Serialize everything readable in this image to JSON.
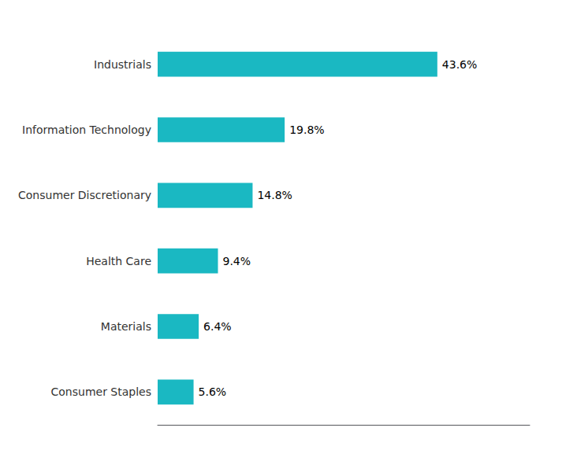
{
  "chart_data": {
    "type": "bar",
    "orientation": "horizontal",
    "categories": [
      "Consumer Staples",
      "Materials",
      "Health Care",
      "Consumer Discretionary",
      "Information Technology",
      "Industrials"
    ],
    "values": [
      5.6,
      6.4,
      9.4,
      14.8,
      19.8,
      43.6
    ],
    "value_labels": [
      "5.6%",
      "6.4%",
      "9.4%",
      "14.8%",
      "19.8%",
      "43.6%"
    ],
    "data_labels": true,
    "color": "#1AB8C2",
    "xlim": [
      0,
      58
    ],
    "tick_labels": "y",
    "grid": false
  }
}
